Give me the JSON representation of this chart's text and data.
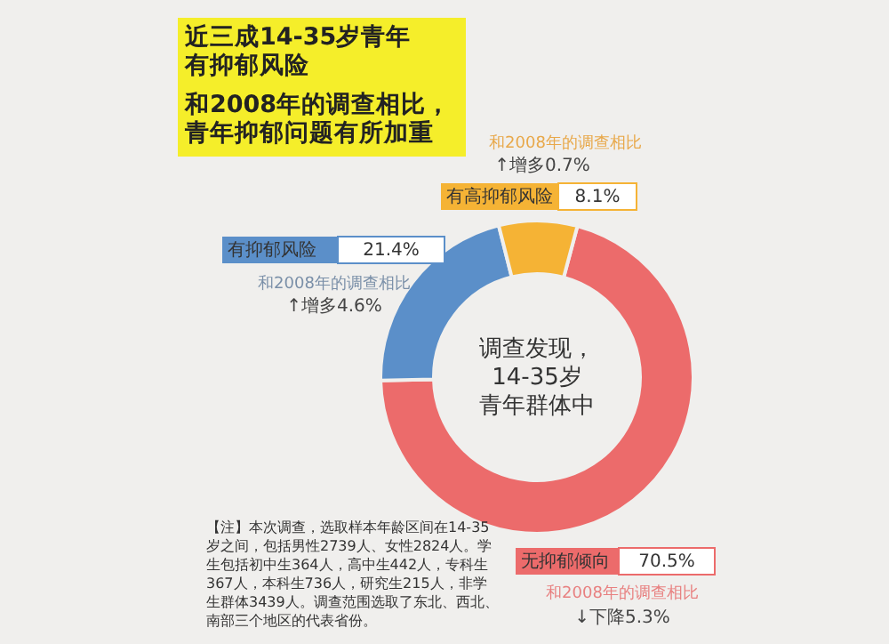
{
  "chart_data": {
    "type": "donut",
    "categories": [
      "无抑郁倾向",
      "有抑郁风险",
      "有高抑郁风险"
    ],
    "values": [
      70.5,
      21.4,
      8.1
    ],
    "colors": [
      "#ec6b6b",
      "#5b8fc9",
      "#f5b335"
    ],
    "value_labels": [
      "70.5%",
      "21.4%",
      "8.1%"
    ],
    "annotations": [
      "和2008年的调查相比",
      "↓下降5.3%",
      "和2008年的调查相比",
      "↑增多4.6%",
      "和2008年的调查相比",
      "↑增多0.7%",
      "调查发现，",
      "14-35岁",
      "青年群体中",
      "【注】本次调查，选取样本年龄区间在14-35岁之间，包括男性2739人、女性2824人。学生包括初中生364人，高中生442人，专科生367人，本科生736人，研究生215人，非学生群体3439人。调查范围选取了东北、西北、南部三个地区的代表省份。",
      "有抑郁风险"
    ],
    "title": "近三成14-35岁青年",
    "subtitle": "和2008年的调查相比，青年抑郁问题有所加重"
  }
}
